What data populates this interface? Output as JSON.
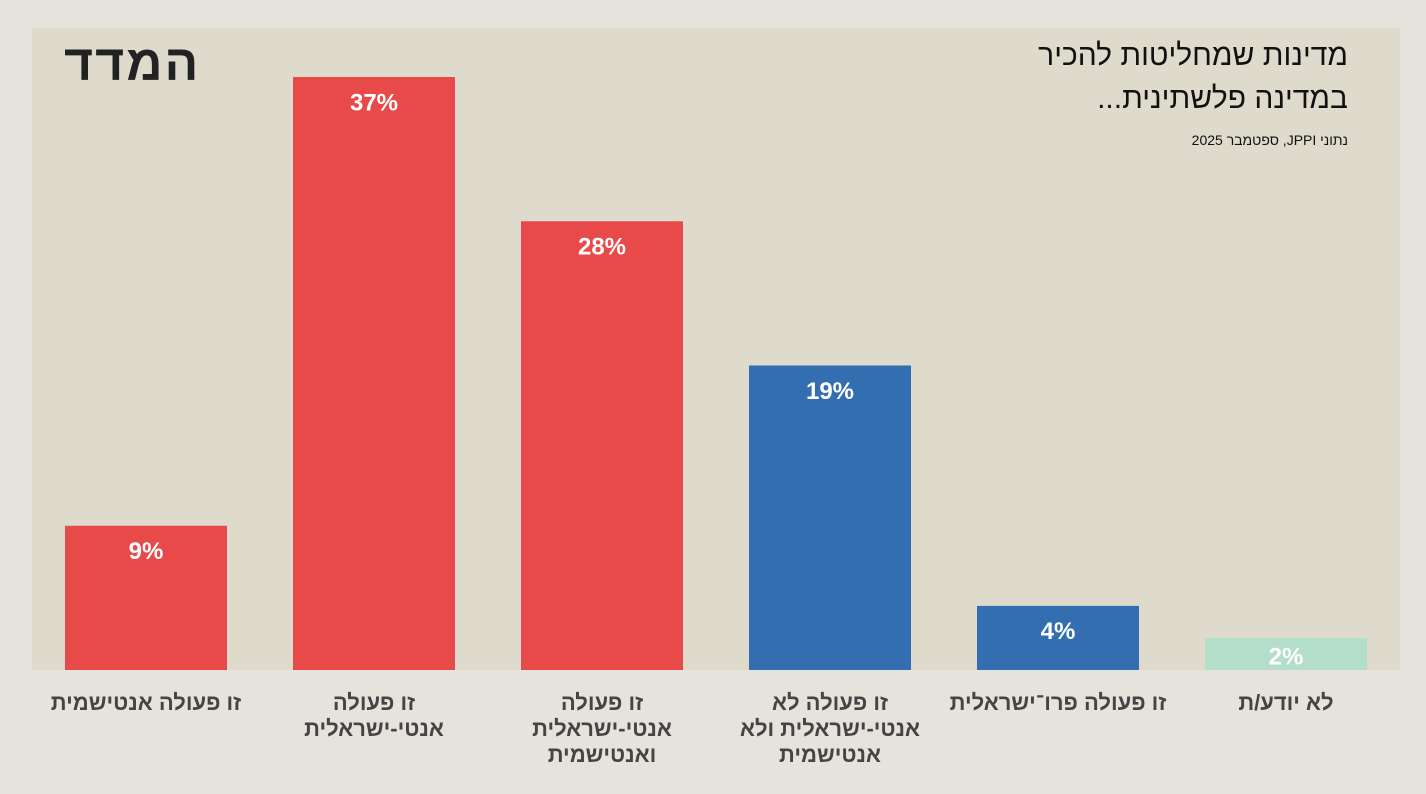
{
  "logo": "המדד",
  "chart_data": {
    "type": "bar",
    "title": "מדינות שמחליטות להכיר במדינה פלשתינית...",
    "subtitle": "נתוני JPPI, ספטמבר 2025",
    "categories": [
      "זו פעולה אנטישמית",
      "זו פעולה אנטי-ישראלית",
      "זו פעולה אנטי-ישראלית ואנטישמית",
      "זו פעולה לא אנטי-ישראלית ולא אנטישמית",
      "זו פעולה פרו־ישראלית",
      "לא יודע/ת"
    ],
    "values": [
      9,
      37,
      28,
      19,
      4,
      2
    ],
    "value_labels": [
      "9%",
      "37%",
      "28%",
      "19%",
      "4%",
      "2%"
    ],
    "colors": [
      "#e84a4a",
      "#e84a4a",
      "#e84a4a",
      "#336fb0",
      "#336fb0",
      "#b3dfca"
    ],
    "ylim": [
      0,
      37
    ]
  }
}
